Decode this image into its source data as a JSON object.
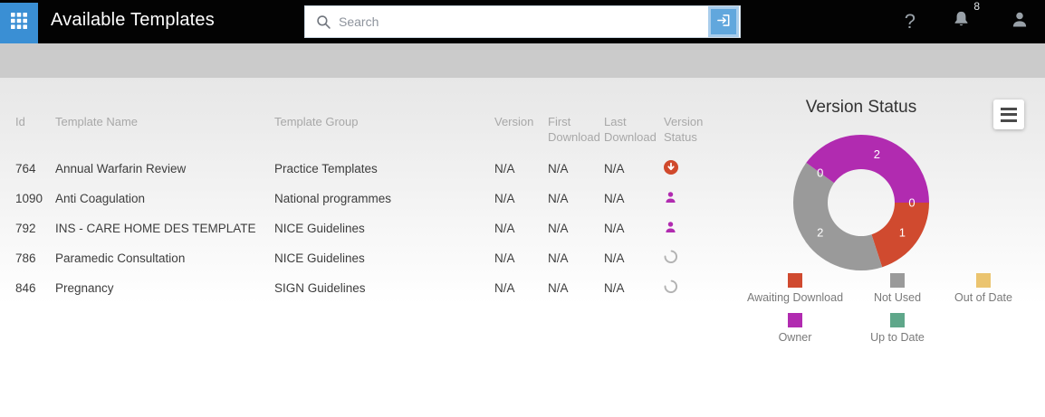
{
  "header": {
    "title": "Available Templates",
    "search": {
      "placeholder": "Search"
    },
    "help_label": "?",
    "notification_count": "8"
  },
  "table": {
    "columns": [
      "Id",
      "Template Name",
      "Template Group",
      "Version",
      "First Download",
      "Last Download",
      "Version Status"
    ],
    "rows": [
      {
        "id": "764",
        "name": "Annual Warfarin Review",
        "group": "Practice Templates",
        "version": "N/A",
        "first_download": "N/A",
        "last_download": "N/A",
        "status": "awaiting-download"
      },
      {
        "id": "1090",
        "name": "Anti Coagulation",
        "group": "National programmes",
        "version": "N/A",
        "first_download": "N/A",
        "last_download": "N/A",
        "status": "owner"
      },
      {
        "id": "792",
        "name": "INS - CARE HOME DES TEMPLATE",
        "group": "NICE Guidelines",
        "version": "N/A",
        "first_download": "N/A",
        "last_download": "N/A",
        "status": "owner"
      },
      {
        "id": "786",
        "name": "Paramedic Consultation",
        "group": "NICE Guidelines",
        "version": "N/A",
        "first_download": "N/A",
        "last_download": "N/A",
        "status": "not-used"
      },
      {
        "id": "846",
        "name": "Pregnancy",
        "group": "SIGN Guidelines",
        "version": "N/A",
        "first_download": "N/A",
        "last_download": "N/A",
        "status": "not-used"
      }
    ]
  },
  "chart": {
    "title": "Version Status"
  },
  "chart_data": {
    "type": "pie",
    "subtype": "donut",
    "title": "Version Status",
    "categories": [
      "Awaiting Download",
      "Not Used",
      "Out of Date",
      "Owner",
      "Up to Date"
    ],
    "values": [
      1,
      2,
      0,
      2,
      0
    ],
    "data_labels": [
      "1",
      "2",
      "0",
      "2",
      "0"
    ],
    "colors": [
      "#d04a2f",
      "#9a9a9a",
      "#ebc46f",
      "#b12bb0",
      "#5fa78a"
    ],
    "start_angle_deg": 0,
    "direction": "clockwise",
    "inner_radius_ratio": 0.49,
    "legend_position": "bottom"
  },
  "status_colors": {
    "awaiting_download": "#d0492c",
    "owner": "#b12bb0",
    "not_used": "#b3b3b3"
  }
}
